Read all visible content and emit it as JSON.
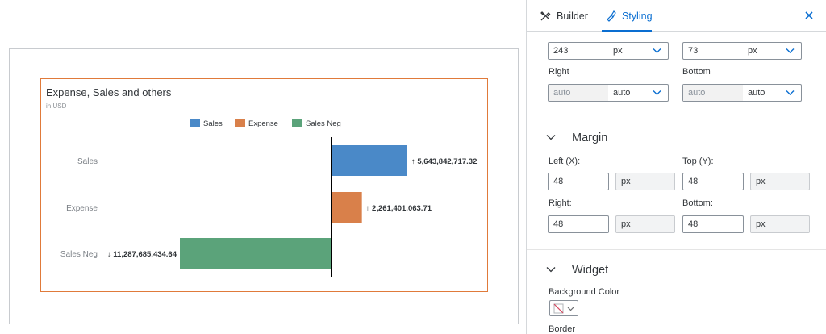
{
  "chart": {
    "title": "Expense, Sales and others",
    "subtitle": "in USD",
    "legend": [
      {
        "label": "Sales",
        "color": "#4a89c8"
      },
      {
        "label": "Expense",
        "color": "#d9804a"
      },
      {
        "label": "Sales Neg",
        "color": "#5ba37a"
      }
    ]
  },
  "chart_data": {
    "type": "bar",
    "orientation": "horizontal",
    "title": "Expense, Sales and others",
    "subtitle": "in USD",
    "categories": [
      "Sales",
      "Expense",
      "Sales Neg"
    ],
    "values": [
      5643842717.32,
      2261401063.71,
      -11287685434.64
    ],
    "data_labels": [
      "↑ 5,643,842,717.32",
      "↑ 2,261,401,063.71",
      "↓ 11,287,685,434.64"
    ],
    "colors": [
      "#4a89c8",
      "#d9804a",
      "#5ba37a"
    ],
    "legend_position": "top",
    "grid": false
  },
  "panel": {
    "tabs": [
      {
        "label": "Builder",
        "icon": "tools-icon"
      },
      {
        "label": "Styling",
        "icon": "paintbrush-icon"
      }
    ],
    "close_icon": "close-icon",
    "size": {
      "width_value": "243",
      "width_unit": "px",
      "height_value": "73",
      "height_unit": "px"
    },
    "position": {
      "right_label": "Right",
      "bottom_label": "Bottom",
      "right_value": "auto",
      "right_unit": "auto",
      "bottom_value": "auto",
      "bottom_unit": "auto"
    },
    "margin": {
      "title": "Margin",
      "left_label": "Left (X):",
      "left_value": "48",
      "left_unit": "px",
      "top_label": "Top (Y):",
      "top_value": "48",
      "top_unit": "px",
      "right_label": "Right:",
      "right_value": "48",
      "right_unit": "px",
      "bottom_label": "Bottom:",
      "bottom_value": "48",
      "bottom_unit": "px"
    },
    "widget": {
      "title": "Widget",
      "bg_label": "Background Color",
      "border_label": "Border"
    }
  }
}
